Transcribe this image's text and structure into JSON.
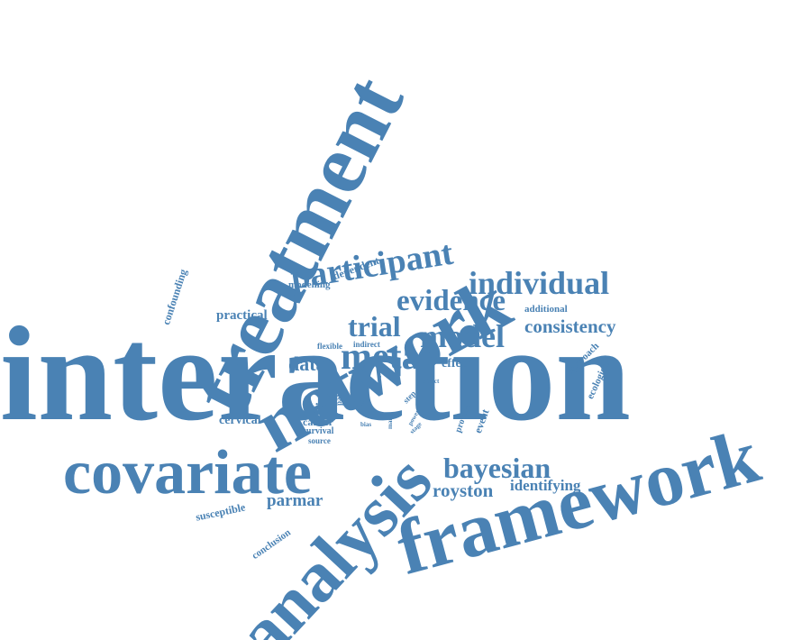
{
  "title": "",
  "accent_color": "#4a82b4",
  "background_color": "#ffffff",
  "words": [
    {
      "text": "interaction",
      "weight": 100
    },
    {
      "text": "treatment",
      "weight": 52
    },
    {
      "text": "network",
      "weight": 48
    },
    {
      "text": "framework",
      "weight": 46
    },
    {
      "text": "analysis",
      "weight": 44
    },
    {
      "text": "covariate",
      "weight": 40
    },
    {
      "text": "participant",
      "weight": 26
    },
    {
      "text": "individual",
      "weight": 24
    },
    {
      "text": "evidence",
      "weight": 22
    },
    {
      "text": "meta",
      "weight": 22
    },
    {
      "text": "trial",
      "weight": 20
    },
    {
      "text": "model",
      "weight": 20
    },
    {
      "text": "bayesian",
      "weight": 20
    },
    {
      "text": "consistency",
      "weight": 14
    },
    {
      "text": "royston",
      "weight": 14
    },
    {
      "text": "identifying",
      "weight": 12
    },
    {
      "text": "parmar",
      "weight": 12
    },
    {
      "text": "data",
      "weight": 14
    },
    {
      "text": "practical",
      "weight": 10
    },
    {
      "text": "cervical",
      "weight": 10
    },
    {
      "text": "time",
      "weight": 10
    },
    {
      "text": "cancer",
      "weight": 8
    },
    {
      "text": "effect",
      "weight": 9
    },
    {
      "text": "dependent",
      "weight": 7
    },
    {
      "text": "modelling",
      "weight": 7
    },
    {
      "text": "confounding",
      "weight": 7
    },
    {
      "text": "additional",
      "weight": 7
    },
    {
      "text": "approach",
      "weight": 6
    },
    {
      "text": "ecological",
      "weight": 6
    },
    {
      "text": "susceptible",
      "weight": 7
    },
    {
      "text": "conclusion",
      "weight": 6
    },
    {
      "text": "survival",
      "weight": 6
    },
    {
      "text": "source",
      "weight": 5
    },
    {
      "text": "flexible",
      "weight": 5
    },
    {
      "text": "indirect",
      "weight": 5
    },
    {
      "text": "patient",
      "weight": 5
    },
    {
      "text": "event",
      "weight": 7
    },
    {
      "text": "provide",
      "weight": 6
    },
    {
      "text": "step",
      "weight": 5
    },
    {
      "text": "power",
      "weight": 4
    },
    {
      "text": "direct",
      "weight": 4
    },
    {
      "text": "bias",
      "weight": 4
    },
    {
      "text": "stage",
      "weight": 4
    },
    {
      "text": "ici",
      "weight": 4
    },
    {
      "text": "more",
      "weight": 4
    },
    {
      "text": "many",
      "weight": 4
    }
  ]
}
